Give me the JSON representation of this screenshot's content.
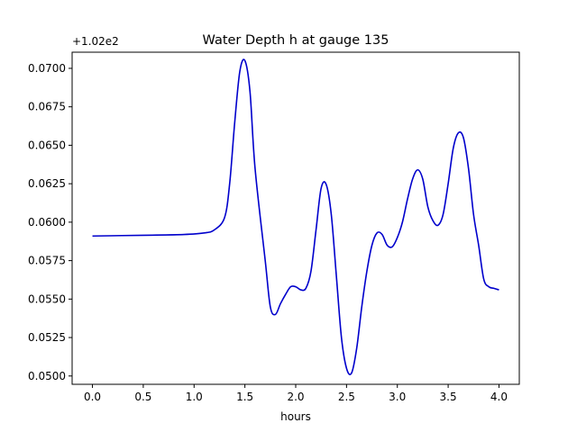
{
  "chart_data": {
    "type": "line",
    "title": "Water Depth h at gauge 135",
    "xlabel": "hours",
    "ylabel": "",
    "offset_label": "+1.02e2",
    "xlim": [
      -0.2,
      4.2
    ],
    "ylim": [
      0.04946,
      0.07105
    ],
    "x_ticks": [
      0.0,
      0.5,
      1.0,
      1.5,
      2.0,
      2.5,
      3.0,
      3.5,
      4.0
    ],
    "x_tick_labels": [
      "0.0",
      "0.5",
      "1.0",
      "1.5",
      "2.0",
      "2.5",
      "3.0",
      "3.5",
      "4.0"
    ],
    "y_ticks": [
      0.05,
      0.0525,
      0.055,
      0.0575,
      0.06,
      0.0625,
      0.065,
      0.0675,
      0.07
    ],
    "y_tick_labels": [
      "0.0500",
      "0.0525",
      "0.0550",
      "0.0575",
      "0.0600",
      "0.0625",
      "0.0650",
      "0.0675",
      "0.0700"
    ],
    "grid": false,
    "series": [
      {
        "color": "#0000cc",
        "x": [
          0.0,
          0.5,
          0.9,
          1.1,
          1.2,
          1.3,
          1.35,
          1.4,
          1.45,
          1.5,
          1.55,
          1.6,
          1.7,
          1.75,
          1.8,
          1.85,
          1.9,
          1.95,
          2.0,
          2.05,
          2.1,
          2.15,
          2.2,
          2.25,
          2.3,
          2.35,
          2.4,
          2.45,
          2.5,
          2.55,
          2.6,
          2.65,
          2.7,
          2.75,
          2.8,
          2.85,
          2.9,
          2.95,
          3.0,
          3.05,
          3.1,
          3.15,
          3.2,
          3.25,
          3.3,
          3.35,
          3.4,
          3.45,
          3.5,
          3.55,
          3.6,
          3.65,
          3.7,
          3.75,
          3.8,
          3.85,
          3.9,
          3.95,
          4.0
        ],
        "y": [
          0.0591,
          0.05915,
          0.0592,
          0.0593,
          0.0595,
          0.0603,
          0.0625,
          0.0665,
          0.0698,
          0.0705,
          0.0685,
          0.0635,
          0.0575,
          0.0545,
          0.054,
          0.0547,
          0.0553,
          0.0558,
          0.0558,
          0.0556,
          0.0557,
          0.0568,
          0.0595,
          0.0622,
          0.06245,
          0.0605,
          0.0565,
          0.0525,
          0.0505,
          0.0502,
          0.0518,
          0.0545,
          0.0568,
          0.0585,
          0.0593,
          0.0592,
          0.0585,
          0.0584,
          0.059,
          0.06,
          0.0615,
          0.0628,
          0.0634,
          0.0628,
          0.061,
          0.0601,
          0.0598,
          0.0605,
          0.0625,
          0.0648,
          0.0658,
          0.0655,
          0.0635,
          0.0605,
          0.0585,
          0.0563,
          0.0558,
          0.0557,
          0.0556
        ]
      }
    ]
  }
}
